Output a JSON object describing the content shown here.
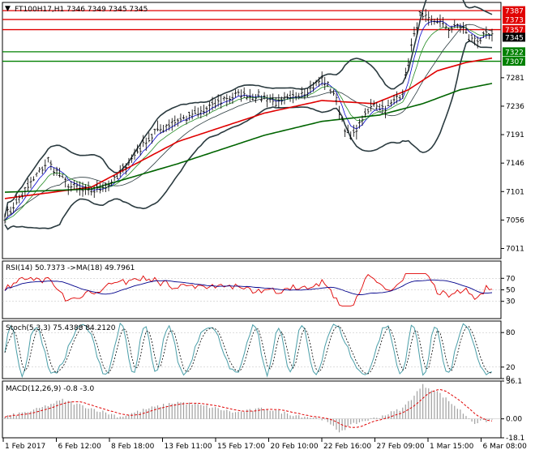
{
  "title": "FT100H17,H1  7346 7349 7345 7345",
  "title_marker": "▼",
  "colors": {
    "price": "#000000",
    "bollinger": "#2a3a3f",
    "ma_fast": "#0000cc",
    "ma_mid": "#228b22",
    "ma_slow": "#e00000",
    "ma_long": "#006400",
    "level_red": "#e00000",
    "level_green": "#008000",
    "current_price_bg": "#000000",
    "rsi": "#e00000",
    "rsi_ma": "#00008b",
    "stoch_main": "#4a9ea8",
    "stoch_signal": "#000000",
    "macd_hist": "#a0a0a0",
    "macd_signal": "#e00000"
  },
  "price_axis": {
    "ticks": [
      "7281",
      "7236",
      "7191",
      "7146",
      "7101",
      "7056",
      "7011"
    ]
  },
  "levels": [
    {
      "value": 7387,
      "label": "7387",
      "kind": "red"
    },
    {
      "value": 7373,
      "label": "7373",
      "kind": "red"
    },
    {
      "value": 7357,
      "label": "7357",
      "kind": "red"
    },
    {
      "value": 7345,
      "label": "7345",
      "kind": "current"
    },
    {
      "value": 7322,
      "label": "7322",
      "kind": "green"
    },
    {
      "value": 7307,
      "label": "7307",
      "kind": "green"
    }
  ],
  "rsi": {
    "label": "RSI(14) 50.7373  ->MA(18) 49.7961",
    "ticks": [
      "70",
      "50",
      "30"
    ]
  },
  "stoch": {
    "label": "Stoch(5,3,3) 75.4388 84.2120",
    "ticks": [
      "80",
      "20",
      "0"
    ]
  },
  "macd": {
    "label": "MACD(12,26,9) -0.8 -3.0",
    "ticks": [
      "36.1",
      "0.00",
      "-18.1"
    ]
  },
  "time_axis": [
    "1 Feb 2017",
    "6 Feb 12:00",
    "8 Feb 18:00",
    "13 Feb 11:00",
    "15 Feb 17:00",
    "20 Feb 10:00",
    "22 Feb 16:00",
    "27 Feb 09:00",
    "1 Mar 15:00",
    "6 Mar 08:00"
  ],
  "chart_data": {
    "type": "line",
    "symbol": "FT100H17",
    "timeframe": "H1",
    "ohlc_last": {
      "open": 7346,
      "high": 7349,
      "low": 7345,
      "close": 7345
    },
    "y_range": [
      6995,
      7400
    ],
    "n_bars": 170,
    "price_path": [
      [
        0,
        7060
      ],
      [
        5,
        7090
      ],
      [
        10,
        7120
      ],
      [
        15,
        7150
      ],
      [
        22,
        7110
      ],
      [
        30,
        7100
      ],
      [
        38,
        7118
      ],
      [
        45,
        7160
      ],
      [
        52,
        7195
      ],
      [
        60,
        7215
      ],
      [
        68,
        7225
      ],
      [
        75,
        7245
      ],
      [
        82,
        7255
      ],
      [
        90,
        7250
      ],
      [
        95,
        7240
      ],
      [
        100,
        7250
      ],
      [
        105,
        7262
      ],
      [
        110,
        7278
      ],
      [
        114,
        7258
      ],
      [
        118,
        7200
      ],
      [
        120,
        7185
      ],
      [
        124,
        7215
      ],
      [
        128,
        7240
      ],
      [
        132,
        7232
      ],
      [
        136,
        7250
      ],
      [
        138,
        7258
      ],
      [
        141,
        7330
      ],
      [
        144,
        7380
      ],
      [
        147,
        7370
      ],
      [
        150,
        7372
      ],
      [
        154,
        7358
      ],
      [
        158,
        7365
      ],
      [
        161,
        7345
      ],
      [
        164,
        7340
      ],
      [
        167,
        7348
      ],
      [
        169,
        7345
      ]
    ],
    "ma_long_path": [
      [
        0,
        7100
      ],
      [
        30,
        7105
      ],
      [
        60,
        7145
      ],
      [
        90,
        7190
      ],
      [
        110,
        7212
      ],
      [
        130,
        7222
      ],
      [
        145,
        7240
      ],
      [
        158,
        7262
      ],
      [
        169,
        7272
      ]
    ],
    "ma_slow_path": [
      [
        0,
        7090
      ],
      [
        30,
        7108
      ],
      [
        60,
        7180
      ],
      [
        90,
        7225
      ],
      [
        110,
        7245
      ],
      [
        128,
        7240
      ],
      [
        140,
        7262
      ],
      [
        150,
        7292
      ],
      [
        160,
        7305
      ],
      [
        169,
        7312
      ]
    ],
    "rsi_series": {
      "name": "RSI(14)",
      "last": 50.7373,
      "range": [
        0,
        100
      ]
    },
    "rsi_ma_series": {
      "name": "MA(18)",
      "last": 49.7961
    },
    "stoch_series": {
      "main_last": 75.4388,
      "signal_last": 84.212,
      "range": [
        0,
        100
      ]
    },
    "macd_series": {
      "main_last": -0.8,
      "signal_last": -3.0,
      "range": [
        -18.1,
        36.1
      ],
      "hist_path": [
        [
          0,
          2
        ],
        [
          10,
          8
        ],
        [
          20,
          18
        ],
        [
          30,
          10
        ],
        [
          40,
          2
        ],
        [
          50,
          10
        ],
        [
          60,
          16
        ],
        [
          70,
          12
        ],
        [
          80,
          6
        ],
        [
          90,
          10
        ],
        [
          100,
          4
        ],
        [
          110,
          0
        ],
        [
          116,
          -12
        ],
        [
          122,
          -4
        ],
        [
          130,
          2
        ],
        [
          138,
          10
        ],
        [
          145,
          32
        ],
        [
          150,
          26
        ],
        [
          158,
          8
        ],
        [
          163,
          -4
        ],
        [
          169,
          -1
        ]
      ]
    }
  }
}
